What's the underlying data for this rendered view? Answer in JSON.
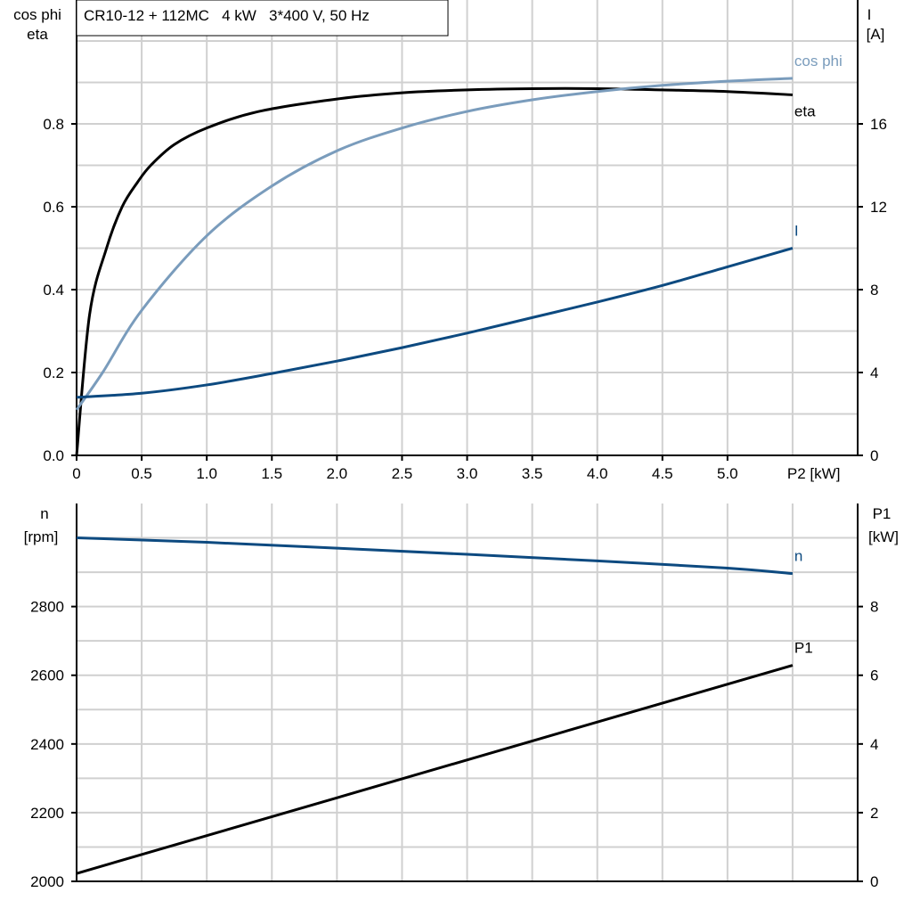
{
  "legend_box": {
    "text": "CR10-12 + 112MC   4 kW   3*400 V, 50 Hz"
  },
  "colors": {
    "eta": "#000000",
    "cos_phi": "#7a9cbc",
    "I": "#0d4a80",
    "n": "#0d4a80",
    "P1": "#000000",
    "grid": "#d0d0d0"
  },
  "chart_data": [
    {
      "type": "line",
      "xlabel": "P2 [kW]",
      "ylabel_left": [
        "cos phi",
        "eta"
      ],
      "ylabel_right": [
        "I",
        "[A]"
      ],
      "xlim": [
        0,
        6.0
      ],
      "ylim_left": [
        0,
        1.1
      ],
      "ylim_right": [
        0,
        22
      ],
      "x_ticks": [
        "0",
        "0.5",
        "1.0",
        "1.5",
        "2.0",
        "2.5",
        "3.0",
        "3.5",
        "4.0",
        "4.5",
        "5.0"
      ],
      "y_ticks_left": [
        "0.0",
        "0.2",
        "0.4",
        "0.6",
        "0.8"
      ],
      "y_ticks_right": [
        "0",
        "4",
        "8",
        "12",
        "16"
      ],
      "grid": true,
      "series": [
        {
          "name": "eta",
          "axis": "left",
          "x": [
            0,
            0.1,
            0.23,
            0.35,
            0.47,
            0.57,
            0.75,
            1.0,
            1.4,
            2.0,
            2.5,
            3.0,
            3.5,
            4.0,
            4.5,
            5.0,
            5.5
          ],
          "y": [
            0,
            0.34,
            0.5,
            0.6,
            0.66,
            0.7,
            0.75,
            0.79,
            0.83,
            0.86,
            0.875,
            0.882,
            0.885,
            0.885,
            0.882,
            0.878,
            0.87
          ]
        },
        {
          "name": "cos phi",
          "axis": "left",
          "x": [
            0,
            0.2,
            0.5,
            1.0,
            1.5,
            2.0,
            2.5,
            3.0,
            3.5,
            4.0,
            4.5,
            5.0,
            5.5
          ],
          "y": [
            0.11,
            0.2,
            0.35,
            0.53,
            0.65,
            0.735,
            0.79,
            0.83,
            0.858,
            0.878,
            0.893,
            0.903,
            0.91
          ]
        },
        {
          "name": "I",
          "axis": "right",
          "x": [
            0,
            0.5,
            1.0,
            1.5,
            2.0,
            2.5,
            3.0,
            3.5,
            4.0,
            4.5,
            5.0,
            5.5
          ],
          "y": [
            2.8,
            3.0,
            3.4,
            3.95,
            4.55,
            5.2,
            5.9,
            6.65,
            7.4,
            8.2,
            9.1,
            10.0
          ]
        }
      ]
    },
    {
      "type": "line",
      "ylabel_left": [
        "n",
        "[rpm]"
      ],
      "ylabel_right": [
        "P1",
        "[kW]"
      ],
      "xlim": [
        0,
        6.0
      ],
      "ylim_left": [
        2000,
        3100
      ],
      "ylim_right": [
        0,
        11
      ],
      "y_ticks_left": [
        "2000",
        "2200",
        "2400",
        "2600",
        "2800"
      ],
      "y_ticks_right": [
        "0",
        "2",
        "4",
        "6",
        "8"
      ],
      "grid": true,
      "series": [
        {
          "name": "n",
          "axis": "left",
          "x": [
            0,
            1,
            2,
            3,
            4,
            5,
            5.5
          ],
          "y": [
            3000,
            2987,
            2970,
            2952,
            2933,
            2912,
            2896
          ]
        },
        {
          "name": "P1",
          "axis": "right",
          "x": [
            0,
            5.5
          ],
          "y": [
            0.23,
            6.29
          ]
        }
      ]
    }
  ]
}
